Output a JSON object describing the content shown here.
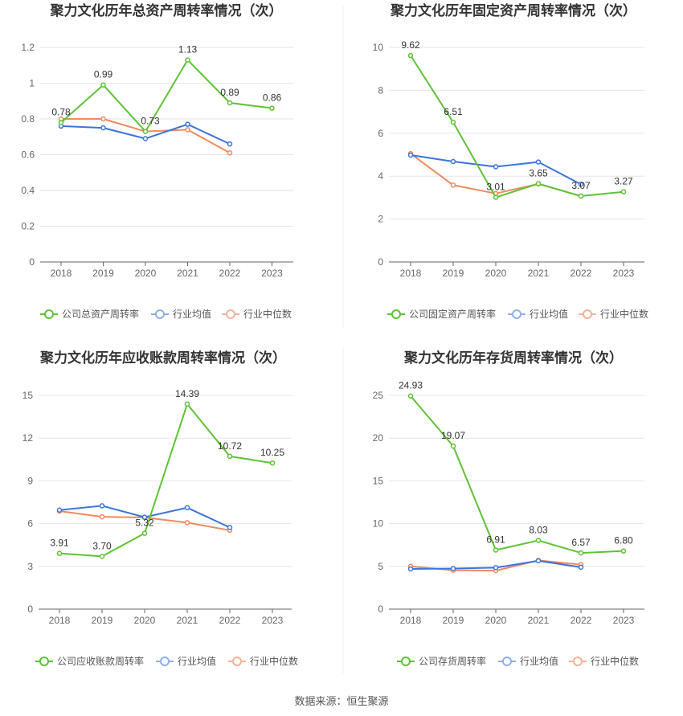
{
  "source_text": "数据来源：恒生聚源",
  "colors": {
    "company": "#5ec235",
    "avg": "#3a75d9",
    "median": "#ef8a5f",
    "avg_legend": "#8fb0ea",
    "median_legend": "#f3b39a"
  },
  "chart_data": [
    {
      "type": "line",
      "title": "聚力文化历年总资产周转率情况（次）",
      "categories": [
        "2018",
        "2019",
        "2020",
        "2021",
        "2022",
        "2023"
      ],
      "ylim": [
        0,
        1.2
      ],
      "yticks": [
        "0",
        "0.2",
        "0.4",
        "0.6",
        "0.8",
        "1",
        "1.2"
      ],
      "series": [
        {
          "name": "公司总资产周转率",
          "values": [
            0.78,
            0.99,
            0.73,
            1.13,
            0.89,
            0.86
          ],
          "labels": [
            "0.78",
            "0.99",
            "0.73",
            "1.13",
            "0.89",
            "0.86"
          ]
        },
        {
          "name": "行业均值",
          "values": [
            0.76,
            0.75,
            0.69,
            0.77,
            0.66,
            null
          ]
        },
        {
          "name": "行业中位数",
          "values": [
            0.8,
            0.8,
            0.73,
            0.74,
            0.61,
            null
          ]
        }
      ]
    },
    {
      "type": "line",
      "title": "聚力文化历年固定资产周转率情况（次）",
      "categories": [
        "2018",
        "2019",
        "2020",
        "2021",
        "2022",
        "2023"
      ],
      "ylim": [
        0,
        10
      ],
      "yticks": [
        "0",
        "2",
        "4",
        "6",
        "8",
        "10"
      ],
      "series": [
        {
          "name": "公司固定资产周转率",
          "values": [
            9.62,
            6.51,
            3.01,
            3.65,
            3.07,
            3.27
          ],
          "labels": [
            "9.62",
            "6.51",
            "3.01",
            "3.65",
            "3.07",
            "3.27"
          ]
        },
        {
          "name": "行业均值",
          "values": [
            4.98,
            4.68,
            4.44,
            4.66,
            3.62,
            null
          ]
        },
        {
          "name": "行业中位数",
          "values": [
            5.05,
            3.58,
            3.19,
            3.64,
            3.07,
            null
          ]
        }
      ]
    },
    {
      "type": "line",
      "title": "聚力文化历年应收账款周转率情况（次）",
      "categories": [
        "2018",
        "2019",
        "2020",
        "2021",
        "2022",
        "2023"
      ],
      "ylim": [
        0,
        15
      ],
      "yticks": [
        "0",
        "3",
        "6",
        "9",
        "12",
        "15"
      ],
      "series": [
        {
          "name": "公司应收账款周转率",
          "values": [
            3.91,
            3.7,
            5.32,
            14.39,
            10.72,
            10.25
          ],
          "labels": [
            "3.91",
            "3.70",
            "5.32",
            "14.39",
            "10.72",
            "10.25"
          ]
        },
        {
          "name": "行业均值",
          "values": [
            6.95,
            7.25,
            6.45,
            7.12,
            5.73,
            null
          ]
        },
        {
          "name": "行业中位数",
          "values": [
            6.88,
            6.48,
            6.43,
            6.07,
            5.53,
            null
          ]
        }
      ]
    },
    {
      "type": "line",
      "title": "聚力文化历年存货周转率情况（次）",
      "categories": [
        "2018",
        "2019",
        "2020",
        "2021",
        "2022",
        "2023"
      ],
      "ylim": [
        0,
        25
      ],
      "yticks": [
        "0",
        "5",
        "10",
        "15",
        "20",
        "25"
      ],
      "series": [
        {
          "name": "公司存货周转率",
          "values": [
            24.93,
            19.07,
            6.91,
            8.03,
            6.57,
            6.8
          ],
          "labels": [
            "24.93",
            "19.07",
            "6.91",
            "8.03",
            "6.57",
            "6.80"
          ]
        },
        {
          "name": "行业均值",
          "values": [
            4.7,
            4.75,
            4.85,
            5.65,
            4.9,
            null
          ]
        },
        {
          "name": "行业中位数",
          "values": [
            5.0,
            4.55,
            4.5,
            5.7,
            5.2,
            null
          ]
        }
      ]
    }
  ]
}
